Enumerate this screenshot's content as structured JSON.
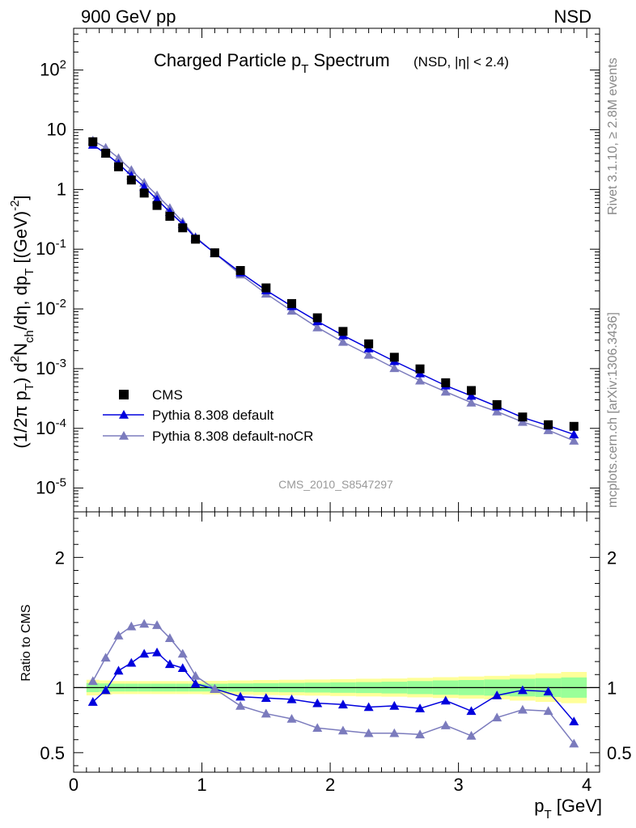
{
  "header": {
    "left": "900 GeV pp",
    "right": "NSD"
  },
  "side_labels": {
    "rivet": "Rivet 3.1.10, ≥ 2.8M events",
    "mcplots": "mcplots.cern.ch [arXiv:1306.3436]"
  },
  "colors": {
    "data": "#000000",
    "default": "#0000dd",
    "nocr": "#7b7bbd",
    "band_outer": "#ffff99",
    "band_inner": "#99ff99"
  },
  "chart_data": [
    {
      "type": "scatter",
      "title_main": "Charged Particle p",
      "title_main_sub": "T",
      "title_main_after": " Spectrum",
      "title_extra": "(NSD, |η| < 2.4)",
      "ylabel": "(1/2π p_T) d²N_ch/dη, dp_T [(GeV)⁻²]",
      "ylabel_parts": [
        "(1/2π p",
        "T",
        ") d",
        "2",
        "N",
        "ch",
        "/dη, dp",
        "T",
        " [(GeV)",
        "-2",
        "]"
      ],
      "yscale": "log",
      "ylim": [
        4e-06,
        500
      ],
      "xlim": [
        0,
        4.1
      ],
      "y_ticks": [
        {
          "value": 1e-05,
          "base": "10",
          "exp": "-5"
        },
        {
          "value": 0.0001,
          "base": "10",
          "exp": "-4"
        },
        {
          "value": 0.001,
          "base": "10",
          "exp": "-3"
        },
        {
          "value": 0.01,
          "base": "10",
          "exp": "-2"
        },
        {
          "value": 0.1,
          "base": "10",
          "exp": "-1"
        },
        {
          "value": 1,
          "base": "1",
          "exp": ""
        },
        {
          "value": 10,
          "base": "10",
          "exp": ""
        },
        {
          "value": 100,
          "base": "10",
          "exp": "2"
        }
      ],
      "watermark": "CMS_2010_S8547297",
      "legend_position": "bottom-left",
      "x": [
        0.15,
        0.25,
        0.35,
        0.45,
        0.55,
        0.65,
        0.75,
        0.85,
        0.95,
        1.1,
        1.3,
        1.5,
        1.7,
        1.9,
        2.1,
        2.3,
        2.5,
        2.7,
        2.9,
        3.1,
        3.3,
        3.5,
        3.7,
        3.9
      ],
      "series": [
        {
          "name": "CMS",
          "marker": "square",
          "values": [
            6.3,
            4.05,
            2.4,
            1.44,
            0.87,
            0.54,
            0.355,
            0.228,
            0.147,
            0.087,
            0.044,
            0.0225,
            0.0123,
            0.0071,
            0.0042,
            0.0026,
            0.00155,
            0.00099,
            0.00058,
            0.00043,
            0.00025,
            0.000155,
            0.000115,
            0.000108
          ]
        },
        {
          "name": "Pythia 8.308 default",
          "marker": "triangle",
          "values": [
            5.6,
            4.0,
            2.7,
            1.7,
            1.1,
            0.68,
            0.42,
            0.264,
            0.155,
            0.086,
            0.0407,
            0.0205,
            0.0111,
            0.0062,
            0.0036,
            0.00218,
            0.00133,
            0.00083,
            0.00052,
            0.00035,
            0.000233,
            0.000152,
            0.000111,
            7.9e-05
          ]
        },
        {
          "name": "Pythia 8.308 default-noCR",
          "marker": "triangle",
          "values": [
            6.6,
            5.0,
            3.35,
            2.12,
            1.3,
            0.8,
            0.49,
            0.287,
            0.16,
            0.086,
            0.0377,
            0.018,
            0.0093,
            0.0049,
            0.0028,
            0.0017,
            0.00102,
            0.00063,
            0.00041,
            0.00027,
            0.000191,
            0.000128,
            9.3e-05,
            6.2e-05
          ]
        }
      ]
    },
    {
      "type": "line",
      "ylabel": "Ratio to CMS",
      "ylim": [
        0.35,
        2.35
      ],
      "xlim": [
        0,
        4.1
      ],
      "xlabel": "p_T [GeV]",
      "xlabel_main": "p",
      "xlabel_sub": "T",
      "xlabel_after": " [GeV]",
      "x_ticks": [
        "0",
        "1",
        "2",
        "3",
        "4"
      ],
      "x_tick_values": [
        0,
        1,
        2,
        3,
        4
      ],
      "y_ticks": [
        "0.5",
        "1",
        "2"
      ],
      "y_tick_values": [
        0.5,
        1,
        2
      ],
      "reference_line": 1,
      "band": {
        "x_edges": [
          0.1,
          0.2,
          0.3,
          0.4,
          0.5,
          0.6,
          0.7,
          0.8,
          0.9,
          1.0,
          1.2,
          1.4,
          1.6,
          1.8,
          2.0,
          2.2,
          2.4,
          2.6,
          2.8,
          3.0,
          3.2,
          3.4,
          3.6,
          3.8,
          4.0
        ],
        "outer": [
          0.06,
          0.055,
          0.05,
          0.05,
          0.05,
          0.05,
          0.05,
          0.05,
          0.05,
          0.052,
          0.055,
          0.058,
          0.06,
          0.062,
          0.065,
          0.068,
          0.07,
          0.075,
          0.08,
          0.085,
          0.09,
          0.1,
          0.11,
          0.12
        ],
        "inner": [
          0.035,
          0.032,
          0.03,
          0.03,
          0.03,
          0.03,
          0.03,
          0.03,
          0.03,
          0.03,
          0.032,
          0.034,
          0.036,
          0.038,
          0.04,
          0.042,
          0.045,
          0.05,
          0.055,
          0.058,
          0.062,
          0.068,
          0.072,
          0.078
        ]
      },
      "series": [
        {
          "name": "Pythia 8.308 default",
          "values": [
            0.89,
            0.98,
            1.13,
            1.19,
            1.26,
            1.27,
            1.18,
            1.15,
            1.03,
            0.99,
            0.93,
            0.92,
            0.91,
            0.88,
            0.87,
            0.85,
            0.86,
            0.84,
            0.9,
            0.82,
            0.94,
            0.98,
            0.97,
            0.74
          ]
        },
        {
          "name": "Pythia 8.308 default-noCR",
          "values": [
            1.05,
            1.23,
            1.4,
            1.47,
            1.49,
            1.48,
            1.38,
            1.26,
            1.09,
            0.99,
            0.86,
            0.8,
            0.76,
            0.69,
            0.67,
            0.65,
            0.65,
            0.64,
            0.71,
            0.63,
            0.77,
            0.83,
            0.82,
            0.57
          ]
        }
      ]
    }
  ]
}
